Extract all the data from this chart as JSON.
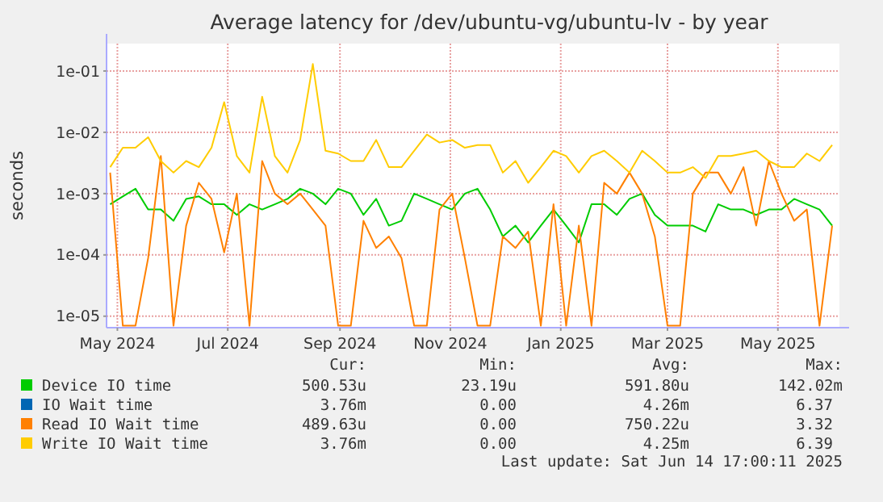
{
  "chart_data": {
    "type": "line",
    "title": "Average latency for /dev/ubuntu-vg/ubuntu-lv - by year",
    "ylabel": "seconds",
    "log": "y",
    "grid": true,
    "legend": "bottom",
    "line_style": "solid",
    "marker": "none",
    "xlim": [
      "2024-04-25",
      "2025-06-04"
    ],
    "xticks": [
      {
        "value": "2024-05-01",
        "label": "May 2024"
      },
      {
        "value": "2024-07-01",
        "label": "Jul 2024"
      },
      {
        "value": "2024-09-01",
        "label": "Sep 2024"
      },
      {
        "value": "2024-11-01",
        "label": "Nov 2024"
      },
      {
        "value": "2025-01-01",
        "label": "Jan 2025"
      },
      {
        "value": "2025-03-01",
        "label": "Mar 2025"
      },
      {
        "value": "2025-05-01",
        "label": "May 2025"
      }
    ],
    "ylim": [
      6.5e-06,
      0.28
    ],
    "yticks": [
      {
        "value": 1e-05,
        "label": "1e-05"
      },
      {
        "value": 0.0001,
        "label": "1e-04"
      },
      {
        "value": 0.001,
        "label": "1e-03"
      },
      {
        "value": 0.01,
        "label": "1e-02"
      },
      {
        "value": 0.1,
        "label": "1e-01"
      }
    ],
    "x": [
      "2024-04-27",
      "2024-05-04",
      "2024-05-11",
      "2024-05-18",
      "2024-05-25",
      "2024-06-01",
      "2024-06-08",
      "2024-06-15",
      "2024-06-22",
      "2024-06-29",
      "2024-07-06",
      "2024-07-13",
      "2024-07-20",
      "2024-07-27",
      "2024-08-03",
      "2024-08-10",
      "2024-08-17",
      "2024-08-24",
      "2024-08-31",
      "2024-09-07",
      "2024-09-14",
      "2024-09-21",
      "2024-09-28",
      "2024-10-05",
      "2024-10-12",
      "2024-10-19",
      "2024-10-26",
      "2024-11-02",
      "2024-11-09",
      "2024-11-16",
      "2024-11-23",
      "2024-11-30",
      "2024-12-07",
      "2024-12-14",
      "2024-12-21",
      "2024-12-28",
      "2025-01-04",
      "2025-01-11",
      "2025-01-18",
      "2025-01-25",
      "2025-02-01",
      "2025-02-08",
      "2025-02-15",
      "2025-02-22",
      "2025-03-01",
      "2025-03-08",
      "2025-03-15",
      "2025-03-22",
      "2025-03-29",
      "2025-04-05",
      "2025-04-12",
      "2025-04-19",
      "2025-04-26",
      "2025-05-03",
      "2025-05-10",
      "2025-05-17",
      "2025-05-24",
      "2025-05-31"
    ],
    "series": [
      {
        "name": "Device IO time",
        "color": "#00cc00",
        "values": [
          0.00067,
          0.0009,
          0.0012,
          0.00055,
          0.00055,
          0.00036,
          0.00082,
          0.0009,
          0.00067,
          0.00067,
          0.00045,
          0.00067,
          0.00055,
          0.00067,
          0.00082,
          0.0012,
          0.001,
          0.00067,
          0.0012,
          0.001,
          0.00045,
          0.00082,
          0.0003,
          0.00036,
          0.001,
          0.00082,
          0.00067,
          0.00055,
          0.001,
          0.0012,
          0.00055,
          0.0002,
          0.0003,
          0.00016,
          0.0003,
          0.00055,
          0.0003,
          0.00016,
          0.00067,
          0.00067,
          0.00045,
          0.00082,
          0.001,
          0.00045,
          0.0003,
          0.0003,
          0.0003,
          0.00024,
          0.00067,
          0.00055,
          0.00055,
          0.00045,
          0.00055,
          0.00055,
          0.00082,
          0.00067,
          0.00055,
          0.0003
        ]
      },
      {
        "name": "IO Wait time",
        "color": "#0066b3",
        "values": [
          null,
          null,
          null,
          null,
          null,
          null,
          null,
          null,
          null,
          null,
          null,
          null,
          null,
          null,
          null,
          null,
          null,
          null,
          null,
          null,
          null,
          null,
          null,
          null,
          null,
          null,
          null,
          null,
          null,
          null,
          null,
          null,
          null,
          null,
          null,
          null,
          null,
          null,
          null,
          null,
          null,
          null,
          null,
          null,
          null,
          null,
          null,
          null,
          null,
          null,
          null,
          null,
          null,
          null,
          null,
          null,
          null,
          null
        ]
      },
      {
        "name": "Read IO Wait time",
        "color": "#ff8000",
        "values": [
          0.0022,
          7e-06,
          7e-06,
          8.9e-05,
          0.0041,
          7e-06,
          0.0003,
          0.0015,
          0.00082,
          0.00011,
          0.001,
          7e-06,
          0.0034,
          0.001,
          0.00067,
          0.001,
          0.00055,
          0.0003,
          7e-06,
          7e-06,
          0.00036,
          0.00013,
          0.0002,
          8.9e-05,
          7e-06,
          7e-06,
          0.00055,
          0.001,
          8.9e-05,
          7e-06,
          7e-06,
          0.0002,
          0.00013,
          0.00024,
          7e-06,
          0.00067,
          7e-06,
          0.0003,
          7e-06,
          0.0015,
          0.001,
          0.0022,
          0.001,
          0.0002,
          7e-06,
          7e-06,
          0.001,
          0.0022,
          0.0022,
          0.001,
          0.0027,
          0.0003,
          0.0034,
          0.001,
          0.00036,
          0.00055,
          7e-06,
          0.0003
        ]
      },
      {
        "name": "Write IO Wait time",
        "color": "#ffcc00",
        "values": [
          0.0027,
          0.0056,
          0.0056,
          0.0083,
          0.0034,
          0.0022,
          0.0034,
          0.0027,
          0.0056,
          0.031,
          0.0041,
          0.0022,
          0.038,
          0.0041,
          0.0022,
          0.0075,
          0.13,
          0.005,
          0.0045,
          0.0034,
          0.0034,
          0.0075,
          0.0027,
          0.0027,
          0.005,
          0.0092,
          0.0068,
          0.0075,
          0.0056,
          0.0062,
          0.0062,
          0.0022,
          0.0034,
          0.0015,
          0.0027,
          0.005,
          0.0041,
          0.0022,
          0.0041,
          0.005,
          0.0034,
          0.0022,
          0.005,
          0.0034,
          0.0022,
          0.0022,
          0.0027,
          0.0018,
          0.0041,
          0.0041,
          0.0045,
          0.005,
          0.0034,
          0.0027,
          0.0027,
          0.0045,
          0.0034,
          0.0062
        ]
      }
    ],
    "annotations": [
      "Cur:",
      "Min:",
      "Avg:",
      "Max:",
      "500.53u",
      "23.19u",
      "591.80u",
      "142.02m",
      "3.76m",
      "0.00",
      "4.26m",
      "6.37",
      "489.63u",
      "0.00",
      "750.22u",
      "3.32",
      "3.76m",
      "0.00",
      "4.25m",
      "6.39",
      "Last update: Sat Jun 14 17:00:11 2025"
    ]
  }
}
